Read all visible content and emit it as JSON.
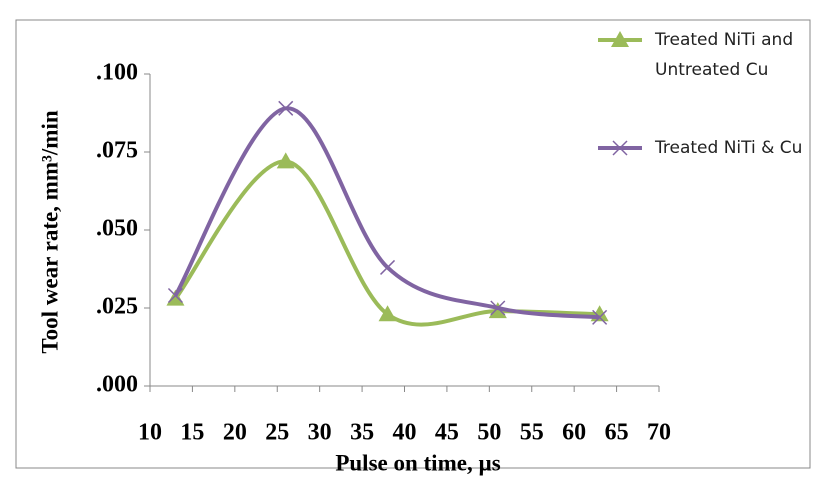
{
  "chart_data": {
    "type": "line",
    "x_label": "Pulse on time, µs",
    "y_label": "Tool wear rate, mm³/min",
    "xlim": [
      10,
      70
    ],
    "xticks": [
      10,
      15,
      20,
      25,
      30,
      35,
      40,
      45,
      50,
      55,
      60,
      65,
      70
    ],
    "ylim": [
      0,
      0.1
    ],
    "yticks": [
      {
        "value": 0,
        "label": ".000"
      },
      {
        "value": 0.025,
        "label": ".025"
      },
      {
        "value": 0.05,
        "label": ".050"
      },
      {
        "value": 0.075,
        "label": ".075"
      },
      {
        "value": 0.1,
        "label": ".100"
      }
    ],
    "x": [
      13,
      26,
      38,
      51,
      63
    ],
    "series": [
      {
        "name": "Treated NiTi and Untreated Cu",
        "color": "#9bbb59",
        "marker": "triangle",
        "values": [
          0.028,
          0.072,
          0.023,
          0.024,
          0.023
        ]
      },
      {
        "name": "Treated NiTi & Cu",
        "color": "#8064a2",
        "marker": "x",
        "values": [
          0.029,
          0.089,
          0.038,
          0.025,
          0.022
        ]
      }
    ]
  }
}
